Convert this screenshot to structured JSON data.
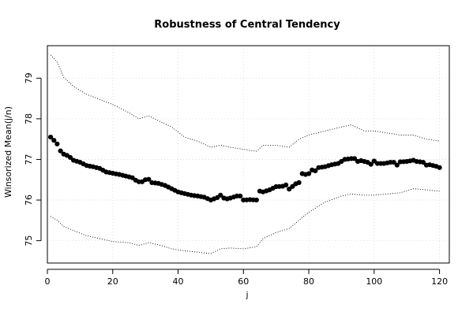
{
  "chart_data": {
    "type": "scatter",
    "title": "Robustness of Central Tendency",
    "xlabel": "j",
    "ylabel": "Winsorized Mean(j/n)",
    "xlim": [
      0,
      123
    ],
    "ylim": [
      74.45,
      79.8
    ],
    "x_ticks": [
      0,
      20,
      40,
      60,
      80,
      100,
      120
    ],
    "y_ticks": [
      75,
      76,
      77,
      78,
      79
    ],
    "grid": true,
    "mean_anchors": [
      [
        1,
        77.55
      ],
      [
        2,
        77.47
      ],
      [
        3,
        77.38
      ],
      [
        4,
        77.21
      ],
      [
        5,
        77.13
      ],
      [
        6,
        77.1
      ],
      [
        7,
        77.05
      ],
      [
        8,
        76.98
      ],
      [
        10,
        76.93
      ],
      [
        12,
        76.85
      ],
      [
        14,
        76.82
      ],
      [
        16,
        76.78
      ],
      [
        18,
        76.69
      ],
      [
        20,
        76.66
      ],
      [
        22,
        76.63
      ],
      [
        24,
        76.59
      ],
      [
        26,
        76.55
      ],
      [
        27,
        76.49
      ],
      [
        28,
        76.45
      ],
      [
        29,
        76.45
      ],
      [
        30,
        76.5
      ],
      [
        31,
        76.51
      ],
      [
        32,
        76.43
      ],
      [
        34,
        76.41
      ],
      [
        36,
        76.36
      ],
      [
        38,
        76.28
      ],
      [
        40,
        76.2
      ],
      [
        42,
        76.16
      ],
      [
        44,
        76.12
      ],
      [
        46,
        76.1
      ],
      [
        48,
        76.07
      ],
      [
        50,
        76.0
      ],
      [
        52,
        76.06
      ],
      [
        53,
        76.12
      ],
      [
        54,
        76.05
      ],
      [
        55,
        76.03
      ],
      [
        56,
        76.05
      ],
      [
        58,
        76.1
      ],
      [
        59,
        76.1
      ],
      [
        60,
        76.0
      ],
      [
        62,
        76.01
      ],
      [
        64,
        76.0
      ],
      [
        65,
        76.22
      ],
      [
        66,
        76.2
      ],
      [
        68,
        76.25
      ],
      [
        70,
        76.33
      ],
      [
        72,
        76.34
      ],
      [
        73,
        76.37
      ],
      [
        74,
        76.27
      ],
      [
        76,
        76.4
      ],
      [
        77,
        76.43
      ],
      [
        78,
        76.65
      ],
      [
        79,
        76.63
      ],
      [
        80,
        76.65
      ],
      [
        81,
        76.74
      ],
      [
        82,
        76.72
      ],
      [
        83,
        76.8
      ],
      [
        85,
        76.82
      ],
      [
        87,
        76.87
      ],
      [
        89,
        76.9
      ],
      [
        91,
        77.0
      ],
      [
        93,
        77.02
      ],
      [
        94,
        77.02
      ],
      [
        95,
        76.95
      ],
      [
        96,
        76.97
      ],
      [
        98,
        76.93
      ],
      [
        99,
        76.88
      ],
      [
        100,
        76.96
      ],
      [
        101,
        76.9
      ],
      [
        103,
        76.9
      ],
      [
        105,
        76.93
      ],
      [
        106,
        76.93
      ],
      [
        107,
        76.86
      ],
      [
        108,
        76.94
      ],
      [
        110,
        76.95
      ],
      [
        112,
        76.98
      ],
      [
        113,
        76.95
      ],
      [
        115,
        76.93
      ],
      [
        116,
        76.86
      ],
      [
        117,
        76.87
      ],
      [
        119,
        76.83
      ],
      [
        120,
        76.8
      ]
    ],
    "upper_band": [
      [
        1,
        79.57
      ],
      [
        3,
        79.4
      ],
      [
        5,
        79.02
      ],
      [
        8,
        78.8
      ],
      [
        12,
        78.6
      ],
      [
        16,
        78.48
      ],
      [
        20,
        78.35
      ],
      [
        25,
        78.15
      ],
      [
        28,
        78.0
      ],
      [
        31,
        78.07
      ],
      [
        34,
        77.95
      ],
      [
        38,
        77.8
      ],
      [
        42,
        77.55
      ],
      [
        46,
        77.45
      ],
      [
        50,
        77.3
      ],
      [
        53,
        77.35
      ],
      [
        56,
        77.3
      ],
      [
        60,
        77.25
      ],
      [
        64,
        77.2
      ],
      [
        66,
        77.35
      ],
      [
        70,
        77.35
      ],
      [
        74,
        77.3
      ],
      [
        77,
        77.5
      ],
      [
        80,
        77.6
      ],
      [
        85,
        77.7
      ],
      [
        90,
        77.8
      ],
      [
        93,
        77.85
      ],
      [
        97,
        77.7
      ],
      [
        100,
        77.7
      ],
      [
        104,
        77.65
      ],
      [
        108,
        77.6
      ],
      [
        112,
        77.6
      ],
      [
        116,
        77.5
      ],
      [
        120,
        77.45
      ]
    ],
    "lower_band": [
      [
        1,
        75.6
      ],
      [
        3,
        75.5
      ],
      [
        5,
        75.35
      ],
      [
        8,
        75.25
      ],
      [
        12,
        75.12
      ],
      [
        16,
        75.05
      ],
      [
        20,
        74.98
      ],
      [
        25,
        74.95
      ],
      [
        28,
        74.88
      ],
      [
        31,
        74.95
      ],
      [
        34,
        74.9
      ],
      [
        38,
        74.8
      ],
      [
        42,
        74.75
      ],
      [
        46,
        74.72
      ],
      [
        50,
        74.68
      ],
      [
        53,
        74.8
      ],
      [
        56,
        74.82
      ],
      [
        60,
        74.8
      ],
      [
        64,
        74.85
      ],
      [
        66,
        75.05
      ],
      [
        70,
        75.2
      ],
      [
        74,
        75.3
      ],
      [
        77,
        75.5
      ],
      [
        80,
        75.7
      ],
      [
        85,
        75.95
      ],
      [
        90,
        76.1
      ],
      [
        93,
        76.15
      ],
      [
        97,
        76.12
      ],
      [
        100,
        76.12
      ],
      [
        104,
        76.15
      ],
      [
        108,
        76.18
      ],
      [
        112,
        76.28
      ],
      [
        116,
        76.25
      ],
      [
        120,
        76.22
      ]
    ]
  }
}
